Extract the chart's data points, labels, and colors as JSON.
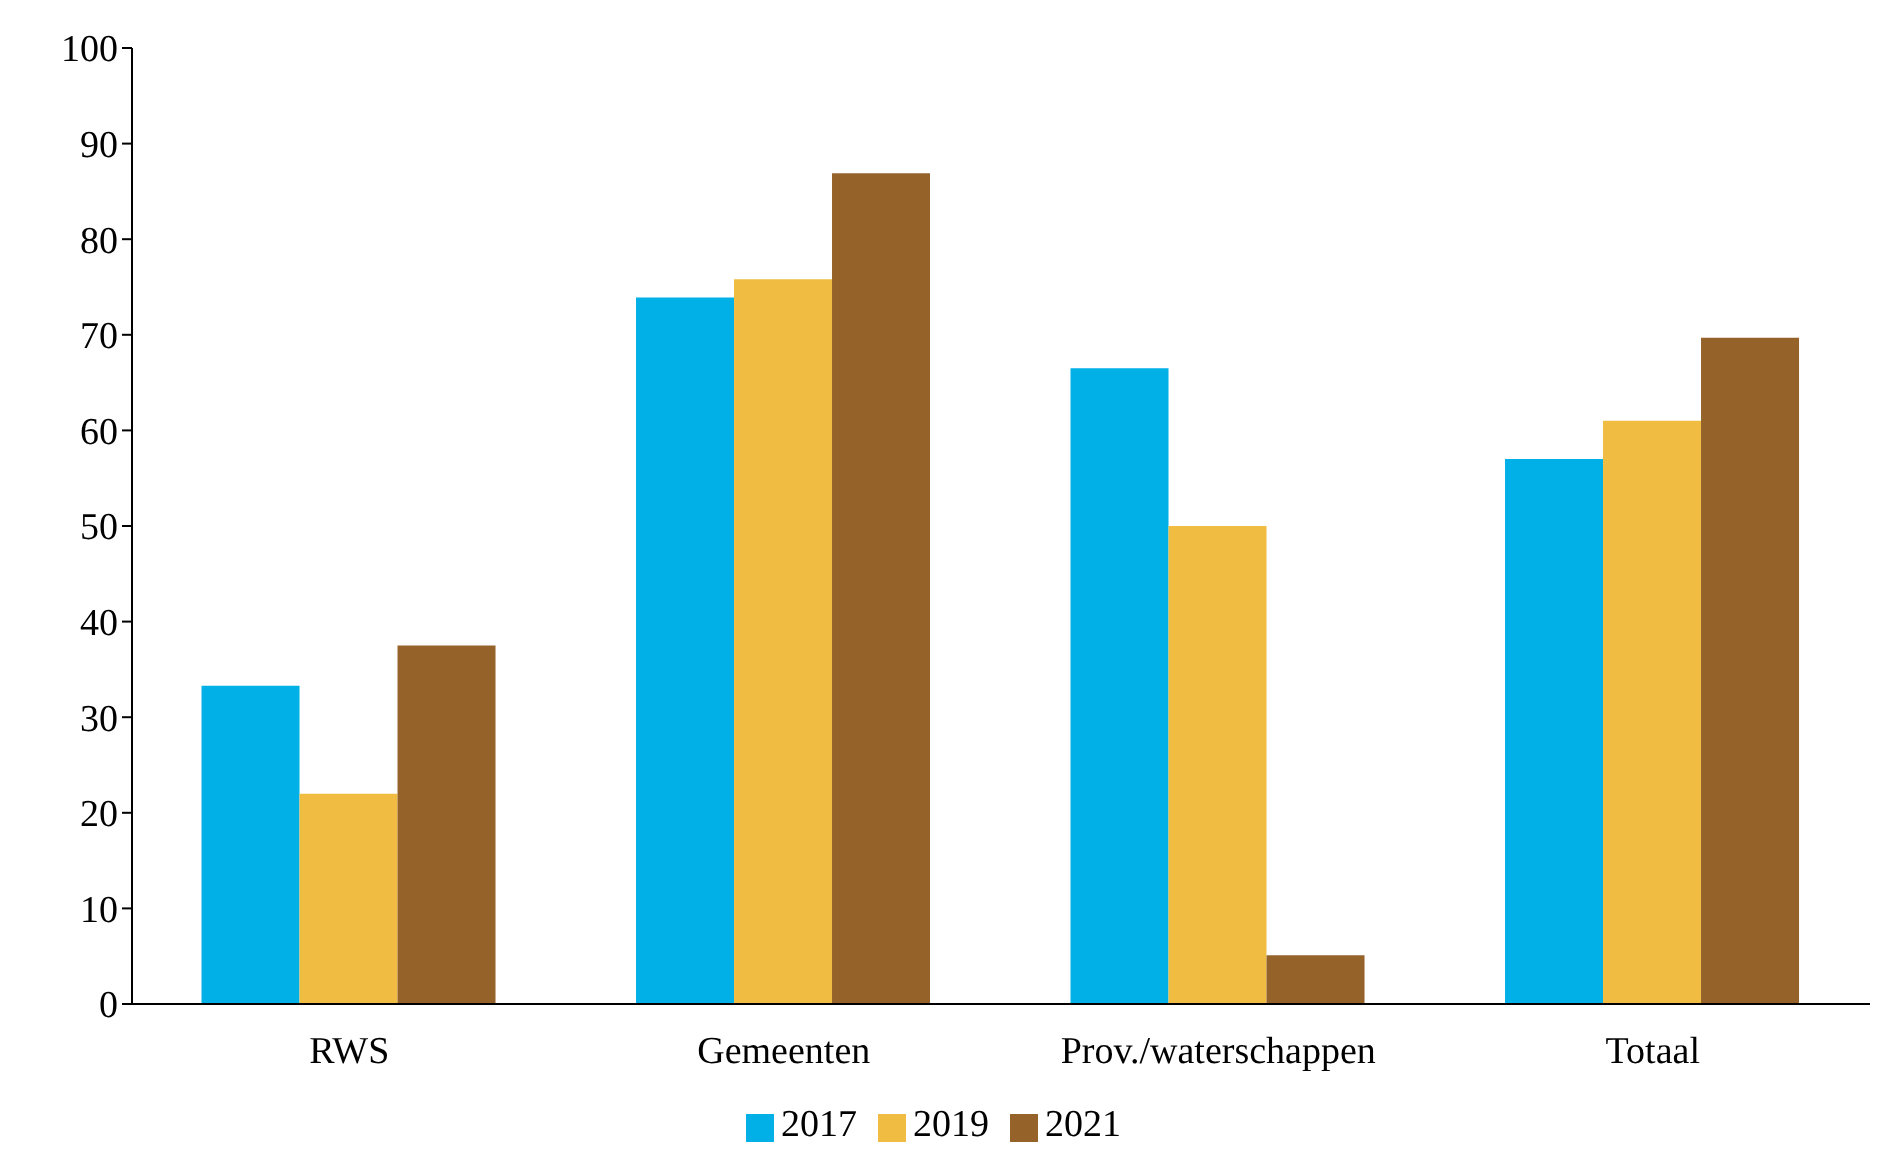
{
  "chart_data": {
    "type": "bar",
    "categories": [
      "RWS",
      "Gemeenten",
      "Prov./waterschappen",
      "Totaal"
    ],
    "series": [
      {
        "name": "2017",
        "color": "#00b0e6",
        "values": [
          33.3,
          73.9,
          66.5,
          57.0
        ]
      },
      {
        "name": "2019",
        "color": "#f0bd42",
        "values": [
          22.0,
          75.8,
          50.0,
          61.0
        ]
      },
      {
        "name": "2021",
        "color": "#95622a",
        "values": [
          37.5,
          86.9,
          5.1,
          69.7
        ]
      }
    ],
    "ylim": [
      0,
      100
    ],
    "yticks": [
      0,
      10,
      20,
      30,
      40,
      50,
      60,
      70,
      80,
      90,
      100
    ],
    "grid": false,
    "legend": "bottom"
  }
}
